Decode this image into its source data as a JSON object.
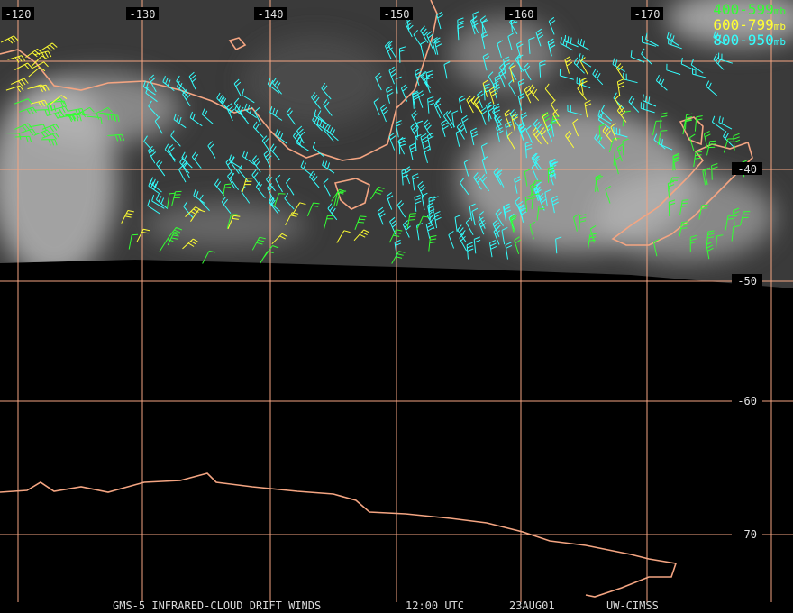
{
  "map": {
    "longitude_labels": [
      "-120",
      "-130",
      "-140",
      "-150",
      "-160",
      "-170"
    ],
    "latitude_labels": [
      "-40",
      "-50",
      "-60",
      "-70"
    ],
    "legend": [
      {
        "range": "400-599",
        "unit": "mb",
        "color": "#33ff33"
      },
      {
        "range": "600-799",
        "unit": "mb",
        "color": "#ffff33"
      },
      {
        "range": "800-950",
        "unit": "mb",
        "color": "#33ffff"
      }
    ],
    "footer": [
      "GMS-5 INFRARED-CLOUD DRIFT WINDS",
      "12:00 UTC",
      "23AUG01",
      "UW-CIMSS"
    ]
  }
}
